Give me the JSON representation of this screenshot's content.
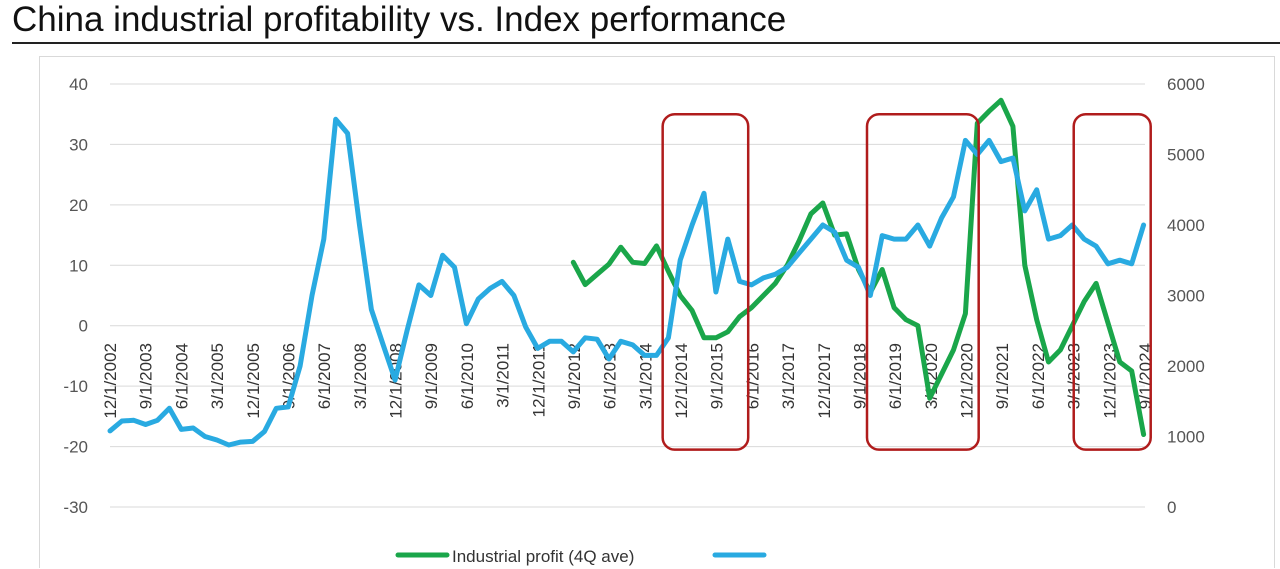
{
  "page": {
    "title": "China industrial profitability vs. Index performance"
  },
  "chart_data": {
    "type": "line",
    "title": "",
    "xlabel": "",
    "ylabel_left": "",
    "ylabel_right": "",
    "left_axis": {
      "min": -30,
      "max": 40,
      "step": 10,
      "ticks": [
        40,
        30,
        20,
        10,
        0,
        -10,
        -20,
        -30
      ]
    },
    "right_axis": {
      "min": 0,
      "max": 6000,
      "step": 1000,
      "ticks": [
        6000,
        5000,
        4000,
        3000,
        2000,
        1000,
        0
      ]
    },
    "x_range": [
      2002.92,
      2024.7
    ],
    "x_tick_labels": [
      "12/1/2002",
      "9/1/2003",
      "6/1/2004",
      "3/1/2005",
      "12/1/2005",
      "9/1/2006",
      "6/1/2007",
      "3/1/2008",
      "12/1/2008",
      "9/1/2009",
      "6/1/2010",
      "3/1/2011",
      "12/1/2011",
      "9/1/2012",
      "6/1/2013",
      "3/1/2014",
      "12/1/2014",
      "9/1/2015",
      "6/1/2016",
      "3/1/2017",
      "12/1/2017",
      "9/1/2018",
      "6/1/2019",
      "3/1/2020",
      "12/1/2020",
      "9/1/2021",
      "6/1/2022",
      "3/1/2023",
      "12/1/2023",
      "9/1/2024"
    ],
    "legend_position": "bottom",
    "grid": "horizontal",
    "series": [
      {
        "name": "Industrial profit (4Q ave)",
        "axis": "left",
        "color": "#1aa64a",
        "x": [
          2012.67,
          2012.92,
          2013.17,
          2013.42,
          2013.67,
          2013.92,
          2014.17,
          2014.42,
          2014.67,
          2014.92,
          2015.17,
          2015.42,
          2015.67,
          2015.92,
          2016.17,
          2016.42,
          2016.67,
          2016.92,
          2017.17,
          2017.42,
          2017.67,
          2017.92,
          2018.17,
          2018.42,
          2018.67,
          2018.92,
          2019.17,
          2019.42,
          2019.67,
          2019.92,
          2020.17,
          2020.42,
          2020.67,
          2020.92,
          2021.17,
          2021.42,
          2021.67,
          2021.92,
          2022.17,
          2022.42,
          2022.67,
          2022.92,
          2023.17,
          2023.42,
          2023.67,
          2023.92,
          2024.17,
          2024.42,
          2024.67
        ],
        "values": [
          10.5,
          6.8,
          8.5,
          10.2,
          13.0,
          10.5,
          10.3,
          13.2,
          9.0,
          5.0,
          2.5,
          -2.0,
          -2.0,
          -1.0,
          1.5,
          3.0,
          5.0,
          7.0,
          10.0,
          14.0,
          18.5,
          20.3,
          15.0,
          15.2,
          9.3,
          5.5,
          9.3,
          3.0,
          1.0,
          0.0,
          -12.0,
          -8.0,
          -4.0,
          2.0,
          33.5,
          35.5,
          37.3,
          33.0,
          10.0,
          1.0,
          -6.0,
          -4.0,
          0.0,
          4.0,
          7.0,
          0.5,
          -6.0,
          -7.5,
          -18.0
        ]
      },
      {
        "name": "",
        "axis": "right",
        "color": "#29aae1",
        "x": [
          2002.92,
          2003.17,
          2003.42,
          2003.67,
          2003.92,
          2004.17,
          2004.42,
          2004.67,
          2004.92,
          2005.17,
          2005.42,
          2005.67,
          2005.92,
          2006.17,
          2006.42,
          2006.67,
          2006.92,
          2007.17,
          2007.42,
          2007.67,
          2007.92,
          2008.17,
          2008.42,
          2008.67,
          2008.92,
          2009.17,
          2009.42,
          2009.67,
          2009.92,
          2010.17,
          2010.42,
          2010.67,
          2010.92,
          2011.17,
          2011.42,
          2011.67,
          2011.92,
          2012.17,
          2012.42,
          2012.67,
          2012.92,
          2013.17,
          2013.42,
          2013.67,
          2013.92,
          2014.17,
          2014.42,
          2014.67,
          2014.92,
          2015.17,
          2015.42,
          2015.67,
          2015.92,
          2016.17,
          2016.42,
          2016.67,
          2016.92,
          2017.17,
          2017.42,
          2017.67,
          2017.92,
          2018.17,
          2018.42,
          2018.67,
          2018.92,
          2019.17,
          2019.42,
          2019.67,
          2019.92,
          2020.17,
          2020.42,
          2020.67,
          2020.92,
          2021.17,
          2021.42,
          2021.67,
          2021.92,
          2022.17,
          2022.42,
          2022.67,
          2022.92,
          2023.17,
          2023.42,
          2023.67,
          2023.92,
          2024.17,
          2024.42,
          2024.67
        ],
        "values": [
          1080,
          1220,
          1230,
          1170,
          1230,
          1400,
          1100,
          1120,
          1000,
          950,
          880,
          920,
          930,
          1070,
          1400,
          1420,
          2000,
          3000,
          3800,
          5500,
          5300,
          4000,
          2800,
          2300,
          1800,
          2500,
          3150,
          3000,
          3570,
          3400,
          2600,
          2950,
          3100,
          3200,
          3000,
          2550,
          2250,
          2350,
          2350,
          2200,
          2400,
          2380,
          2100,
          2350,
          2300,
          2150,
          2150,
          2400,
          3500,
          4000,
          4450,
          3050,
          3800,
          3200,
          3150,
          3250,
          3300,
          3400,
          3600,
          3800,
          4000,
          3900,
          3500,
          3400,
          3000,
          3850,
          3800,
          3800,
          4000,
          3700,
          4100,
          4400,
          5200,
          5000,
          5200,
          4900,
          4950,
          4200,
          4500,
          3800,
          3850,
          4000,
          3800,
          3700,
          3450,
          3500,
          3450,
          4000
        ]
      }
    ],
    "highlight_windows": [
      {
        "x_start": 2014.55,
        "x_end": 2016.35,
        "y_top": 35,
        "y_bottom": -20.5
      },
      {
        "x_start": 2018.85,
        "x_end": 2021.2,
        "y_top": 35,
        "y_bottom": -20.5
      },
      {
        "x_start": 2023.2,
        "x_end": 2024.82,
        "y_top": 35,
        "y_bottom": -20.5
      }
    ],
    "highlight_color": "#b01c1c",
    "grid_color": "#d9d9d9"
  }
}
